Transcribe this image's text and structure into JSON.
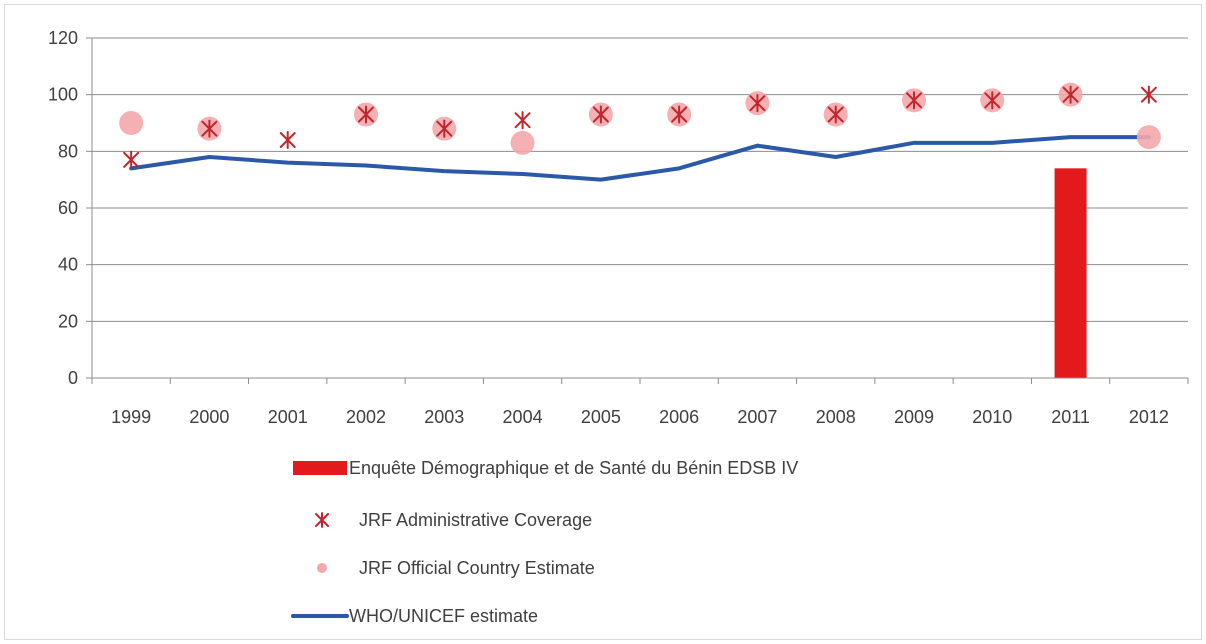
{
  "chart_data": {
    "type": "line",
    "title": "",
    "xlabel": "",
    "ylabel": "",
    "categories": [
      "1999",
      "2000",
      "2001",
      "2002",
      "2003",
      "2004",
      "2005",
      "2006",
      "2007",
      "2008",
      "2009",
      "2010",
      "2011",
      "2012"
    ],
    "ylim": [
      0,
      120
    ],
    "y_ticks": [
      "0",
      "20",
      "40",
      "60",
      "80",
      "100",
      "120"
    ],
    "grid": true,
    "legend_position": "bottom",
    "series": [
      {
        "name": "Enquête Démographique et de Santé du Bénin EDSB IV",
        "kind": "bar",
        "color": "#e31a1c",
        "values": [
          null,
          null,
          null,
          null,
          null,
          null,
          null,
          null,
          null,
          null,
          null,
          null,
          74,
          null
        ]
      },
      {
        "name": "JRF Administrative Coverage",
        "kind": "marker-asterisk",
        "color": "#c0262c",
        "values": [
          77,
          88,
          84,
          93,
          88,
          91,
          93,
          93,
          97,
          93,
          98,
          98,
          100,
          100
        ]
      },
      {
        "name": "JRF Official Country Estimate",
        "kind": "marker-circle",
        "color": "#f4a7ab",
        "values": [
          90,
          88,
          null,
          93,
          88,
          83,
          93,
          93,
          97,
          93,
          98,
          98,
          100,
          85
        ]
      },
      {
        "name": "WHO/UNICEF estimate",
        "kind": "line",
        "color": "#2b59a8",
        "values": [
          74,
          78,
          76,
          75,
          73,
          72,
          70,
          74,
          82,
          78,
          83,
          83,
          85,
          85
        ]
      }
    ]
  }
}
